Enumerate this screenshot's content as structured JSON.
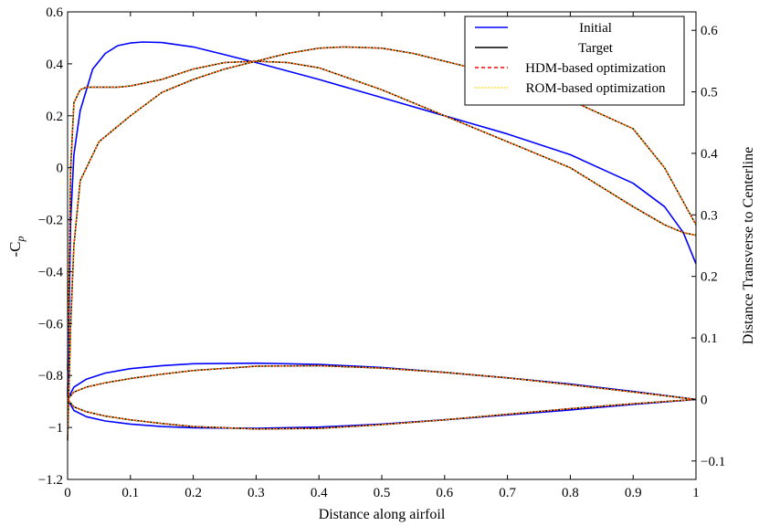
{
  "chart_data": {
    "type": "line",
    "xlabel": "Distance along airfoil",
    "ylabel_left": "-C",
    "ylabel_left_sub": "p",
    "ylabel_right": "Distance Transverse to Centerline",
    "xlim": [
      0,
      1
    ],
    "ylim_left": [
      -1.2,
      0.6
    ],
    "ylim_right": [
      -0.13,
      0.63
    ],
    "x_ticks": [
      "0",
      "0.1",
      "0.2",
      "0.3",
      "0.4",
      "0.5",
      "0.6",
      "0.7",
      "0.8",
      "0.9",
      "1"
    ],
    "y_left_ticks": [
      "−1.2",
      "−1",
      "−0.8",
      "−0.6",
      "−0.4",
      "−0.2",
      "0",
      "0.2",
      "0.4",
      "0.6"
    ],
    "y_right_ticks": [
      "−0.1",
      "0",
      "0.1",
      "0.2",
      "0.3",
      "0.4",
      "0.5",
      "0.6"
    ],
    "grid": false,
    "legend_position": "top-right",
    "legend": [
      {
        "label": "Initial",
        "color": "#0000ff",
        "style": "solid"
      },
      {
        "label": "Target",
        "color": "#000000",
        "style": "solid"
      },
      {
        "label": "HDM-based optimization",
        "color": "#ff0000",
        "style": "dashed"
      },
      {
        "label": "ROM-based optimization",
        "color": "#ffd700",
        "style": "dotted"
      }
    ],
    "series": [
      {
        "name": "Initial",
        "axis": "left",
        "curves": [
          {
            "part": "cp",
            "x": [
              0.0,
              0.005,
              0.01,
              0.02,
              0.04,
              0.06,
              0.08,
              0.1,
              0.12,
              0.15,
              0.2,
              0.25,
              0.3,
              0.4,
              0.5,
              0.6,
              0.7,
              0.8,
              0.9,
              0.95,
              0.98,
              1.0
            ],
            "y": [
              -0.88,
              -0.2,
              0.05,
              0.22,
              0.38,
              0.44,
              0.47,
              0.48,
              0.484,
              0.482,
              0.465,
              0.435,
              0.405,
              0.34,
              0.27,
              0.2,
              0.13,
              0.05,
              -0.06,
              -0.15,
              -0.25,
              -0.37
            ]
          }
        ]
      },
      {
        "name": "Initial",
        "axis": "right",
        "curves": [
          {
            "part": "upper-surface",
            "x": [
              0.0,
              0.01,
              0.03,
              0.06,
              0.1,
              0.15,
              0.2,
              0.3,
              0.4,
              0.5,
              0.6,
              0.7,
              0.8,
              0.9,
              1.0
            ],
            "y": [
              0.0,
              0.02,
              0.033,
              0.043,
              0.05,
              0.055,
              0.058,
              0.059,
              0.057,
              0.052,
              0.044,
              0.035,
              0.025,
              0.013,
              0.0
            ]
          },
          {
            "part": "lower-surface",
            "x": [
              0.0,
              0.01,
              0.03,
              0.06,
              0.1,
              0.15,
              0.2,
              0.3,
              0.4,
              0.5,
              0.6,
              0.7,
              0.8,
              0.9,
              1.0
            ],
            "y": [
              0.0,
              -0.018,
              -0.028,
              -0.035,
              -0.04,
              -0.044,
              -0.046,
              -0.047,
              -0.045,
              -0.04,
              -0.033,
              -0.025,
              -0.017,
              -0.008,
              0.0
            ]
          }
        ]
      },
      {
        "name": "Target",
        "axis": "left",
        "curves": [
          {
            "part": "cp-branch-1",
            "x": [
              0.0,
              0.005,
              0.01,
              0.02,
              0.03,
              0.05,
              0.08,
              0.1,
              0.15,
              0.2,
              0.25,
              0.3,
              0.35,
              0.4,
              0.5,
              0.6,
              0.7,
              0.8,
              0.9,
              0.95,
              0.98,
              1.0
            ],
            "y": [
              -0.78,
              0.0,
              0.25,
              0.3,
              0.31,
              0.31,
              0.31,
              0.315,
              0.34,
              0.38,
              0.405,
              0.41,
              0.405,
              0.385,
              0.3,
              0.2,
              0.1,
              0.0,
              -0.15,
              -0.22,
              -0.25,
              -0.26
            ]
          },
          {
            "part": "cp-branch-2",
            "x": [
              0.0,
              0.005,
              0.01,
              0.02,
              0.05,
              0.08,
              0.1,
              0.15,
              0.2,
              0.25,
              0.3,
              0.35,
              0.4,
              0.44,
              0.5,
              0.55,
              0.6,
              0.7,
              0.8,
              0.9,
              0.95,
              1.0
            ],
            "y": [
              -1.05,
              -0.6,
              -0.3,
              -0.05,
              0.1,
              0.16,
              0.2,
              0.29,
              0.34,
              0.38,
              0.41,
              0.44,
              0.46,
              0.465,
              0.46,
              0.44,
              0.41,
              0.35,
              0.26,
              0.15,
              0.0,
              -0.22
            ]
          }
        ]
      },
      {
        "name": "Target",
        "axis": "right",
        "curves": [
          {
            "part": "upper-surface",
            "x": [
              0.0,
              0.01,
              0.03,
              0.06,
              0.1,
              0.15,
              0.2,
              0.3,
              0.4,
              0.5,
              0.6,
              0.7,
              0.8,
              0.9,
              1.0
            ],
            "y": [
              0.0,
              0.012,
              0.02,
              0.027,
              0.034,
              0.041,
              0.047,
              0.054,
              0.055,
              0.051,
              0.044,
              0.035,
              0.024,
              0.012,
              0.0
            ]
          },
          {
            "part": "lower-surface",
            "x": [
              0.0,
              0.01,
              0.03,
              0.06,
              0.1,
              0.15,
              0.2,
              0.3,
              0.4,
              0.5,
              0.6,
              0.7,
              0.8,
              0.9,
              1.0
            ],
            "y": [
              0.0,
              -0.012,
              -0.02,
              -0.027,
              -0.033,
              -0.039,
              -0.044,
              -0.048,
              -0.047,
              -0.041,
              -0.033,
              -0.024,
              -0.015,
              -0.007,
              0.0
            ]
          }
        ]
      }
    ]
  }
}
